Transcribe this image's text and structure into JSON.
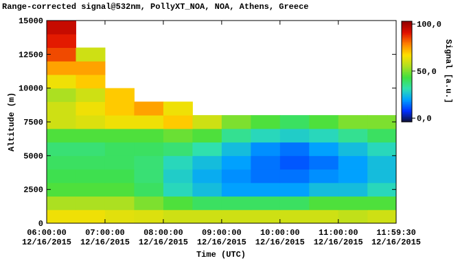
{
  "chart_data": {
    "type": "heatmap",
    "title": "Range-corrected signal@532nm, PollyXT_NOA, NOA, Athens, Greece",
    "xlabel": "Time (UTC)",
    "ylabel": "Altitude (m)",
    "colorbar_label": "Signal [a.u.]",
    "x": [
      6,
      6.5,
      7,
      7.5,
      8,
      8.5,
      9,
      9.5,
      10,
      10.5,
      11,
      11.5,
      11.9917
    ],
    "y": [
      0,
      1000,
      2000,
      3000,
      4000,
      5000,
      6000,
      7000,
      8000,
      9000,
      10000,
      11000,
      12000,
      13000,
      14000,
      15000
    ],
    "z": [
      [
        65,
        65,
        63,
        62,
        60,
        60,
        60,
        60,
        60,
        60,
        58,
        60
      ],
      [
        55,
        55,
        55,
        50,
        45,
        40,
        40,
        40,
        40,
        45,
        45,
        45
      ],
      [
        45,
        45,
        45,
        40,
        30,
        25,
        20,
        20,
        20,
        25,
        25,
        30
      ],
      [
        42,
        42,
        42,
        38,
        28,
        22,
        18,
        15,
        15,
        18,
        20,
        25
      ],
      [
        40,
        40,
        40,
        38,
        30,
        25,
        20,
        15,
        12,
        15,
        20,
        25
      ],
      [
        38,
        38,
        40,
        40,
        38,
        32,
        25,
        18,
        15,
        20,
        25,
        30
      ],
      [
        45,
        45,
        45,
        45,
        48,
        45,
        35,
        30,
        28,
        30,
        35,
        40
      ],
      [
        60,
        62,
        65,
        65,
        70,
        60,
        50,
        45,
        40,
        45,
        50,
        50
      ],
      [
        60,
        65,
        70,
        75,
        65,
        null,
        null,
        null,
        null,
        null,
        null,
        null
      ],
      [
        55,
        60,
        70,
        null,
        null,
        null,
        null,
        null,
        null,
        null,
        null,
        null
      ],
      [
        65,
        70,
        null,
        null,
        null,
        null,
        null,
        null,
        null,
        null,
        null,
        null
      ],
      [
        75,
        75,
        null,
        null,
        null,
        null,
        null,
        null,
        null,
        null,
        null,
        null
      ],
      [
        85,
        60,
        null,
        null,
        null,
        null,
        null,
        null,
        null,
        null,
        null,
        null
      ],
      [
        90,
        null,
        null,
        null,
        null,
        null,
        null,
        null,
        null,
        null,
        null,
        null
      ],
      [
        95,
        null,
        null,
        null,
        null,
        null,
        null,
        null,
        null,
        null,
        null,
        null
      ]
    ],
    "xlim": [
      6,
      11.9917
    ],
    "ylim": [
      0,
      15000
    ],
    "clim": [
      -4,
      103
    ],
    "xticks": [
      {
        "value": 6,
        "label": "06:00:00 12/16/2015"
      },
      {
        "value": 7,
        "label": "07:00:00 12/16/2015"
      },
      {
        "value": 8,
        "label": "08:00:00 12/16/2015"
      },
      {
        "value": 9,
        "label": "09:00:00 12/16/2015"
      },
      {
        "value": 10,
        "label": "10:00:00 12/16/2015"
      },
      {
        "value": 11,
        "label": "11:00:00 12/16/2015"
      },
      {
        "value": 11.9917,
        "label": "11:59:30 12/16/2015"
      }
    ],
    "yticks": [
      0,
      2500,
      5000,
      7500,
      10000,
      12500,
      15000
    ],
    "cticks": [
      {
        "value": 100,
        "label": "100,0"
      },
      {
        "value": 50,
        "label": "50,0"
      },
      {
        "value": 0,
        "label": "0,0"
      }
    ],
    "colormap": [
      "#101030",
      "#0030ff",
      "#00a0ff",
      "#30e0b0",
      "#40e040",
      "#b0e020",
      "#ffe000",
      "#ff8000",
      "#e01000",
      "#900000"
    ],
    "background": "#ffffff"
  }
}
